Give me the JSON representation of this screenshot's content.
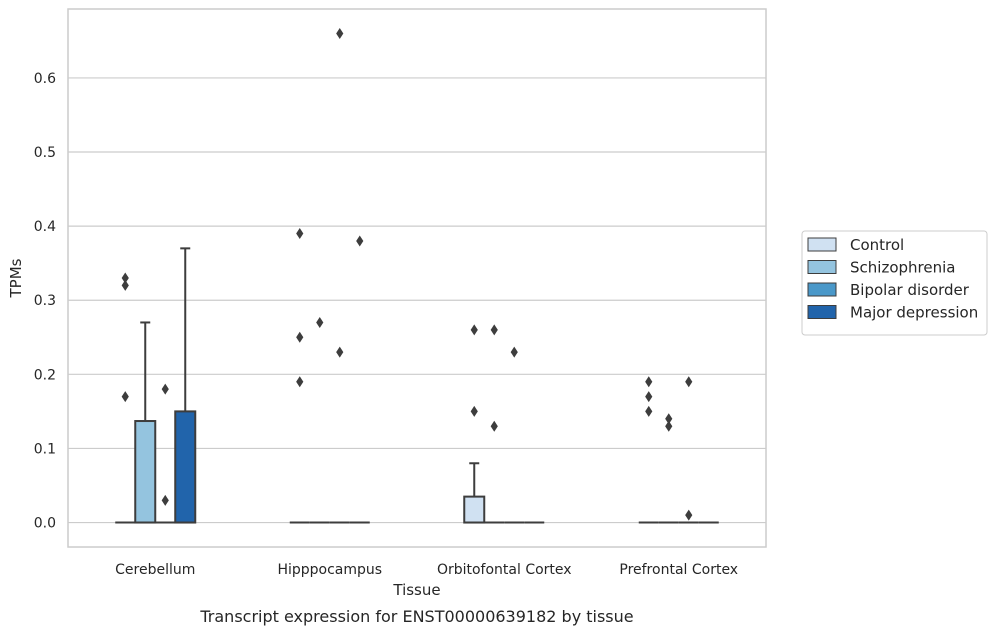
{
  "chart_data": {
    "type": "box",
    "title": "",
    "caption": "Transcript expression for ENST00000639182 by tissue",
    "xlabel": "Tissue",
    "ylabel": "TPMs",
    "ylim": [
      -0.033,
      0.693
    ],
    "yticks": [
      "0.0",
      "0.1",
      "0.2",
      "0.3",
      "0.4",
      "0.5",
      "0.6"
    ],
    "grid": "horizontal",
    "legend_position": "right",
    "categories": [
      "Cerebellum",
      "Hipppocampus",
      "Orbitofontal Cortex",
      "Prefrontal Cortex"
    ],
    "series": [
      {
        "name": "Control",
        "color": "#d0e1f2",
        "boxes": [
          {
            "q1": 0,
            "median": 0,
            "q3": 0,
            "whisker_low": 0,
            "whisker_high": 0,
            "outliers": [
              0.17,
              0.32,
              0.33
            ]
          },
          {
            "q1": 0,
            "median": 0,
            "q3": 0,
            "whisker_low": 0,
            "whisker_high": 0,
            "outliers": [
              0.19,
              0.25,
              0.39
            ]
          },
          {
            "q1": 0,
            "median": 0,
            "q3": 0.035,
            "whisker_low": 0,
            "whisker_high": 0.08,
            "outliers": [
              0.15,
              0.26
            ]
          },
          {
            "q1": 0,
            "median": 0,
            "q3": 0,
            "whisker_low": 0,
            "whisker_high": 0,
            "outliers": [
              0.15,
              0.17,
              0.19
            ]
          }
        ]
      },
      {
        "name": "Schizophrenia",
        "color": "#94c4df",
        "boxes": [
          {
            "q1": 0,
            "median": 0,
            "q3": 0.137,
            "whisker_low": 0,
            "whisker_high": 0.27,
            "outliers": []
          },
          {
            "q1": 0,
            "median": 0,
            "q3": 0,
            "whisker_low": 0,
            "whisker_high": 0,
            "outliers": [
              0.27
            ]
          },
          {
            "q1": 0,
            "median": 0,
            "q3": 0,
            "whisker_low": 0,
            "whisker_high": 0,
            "outliers": [
              0.13,
              0.26
            ]
          },
          {
            "q1": 0,
            "median": 0,
            "q3": 0,
            "whisker_low": 0,
            "whisker_high": 0,
            "outliers": [
              0.13,
              0.14
            ]
          }
        ]
      },
      {
        "name": "Bipolar disorder",
        "color": "#4a98c9",
        "boxes": [
          {
            "q1": 0,
            "median": 0,
            "q3": 0,
            "whisker_low": 0,
            "whisker_high": 0,
            "outliers": [
              0.03,
              0.18
            ]
          },
          {
            "q1": 0,
            "median": 0,
            "q3": 0,
            "whisker_low": 0,
            "whisker_high": 0,
            "outliers": [
              0.23,
              0.66
            ]
          },
          {
            "q1": 0,
            "median": 0,
            "q3": 0,
            "whisker_low": 0,
            "whisker_high": 0,
            "outliers": [
              0.23
            ]
          },
          {
            "q1": 0,
            "median": 0,
            "q3": 0,
            "whisker_low": 0,
            "whisker_high": 0,
            "outliers": [
              0.01,
              0.19
            ]
          }
        ]
      },
      {
        "name": "Major depression",
        "color": "#2164ab",
        "boxes": [
          {
            "q1": 0,
            "median": 0,
            "q3": 0.15,
            "whisker_low": 0,
            "whisker_high": 0.37,
            "outliers": []
          },
          {
            "q1": 0,
            "median": 0,
            "q3": 0,
            "whisker_low": 0,
            "whisker_high": 0,
            "outliers": [
              0.38
            ]
          },
          {
            "q1": 0,
            "median": 0,
            "q3": 0,
            "whisker_low": 0,
            "whisker_high": 0,
            "outliers": []
          },
          {
            "q1": 0,
            "median": 0,
            "q3": 0,
            "whisker_low": 0,
            "whisker_high": 0,
            "outliers": []
          }
        ]
      }
    ]
  }
}
